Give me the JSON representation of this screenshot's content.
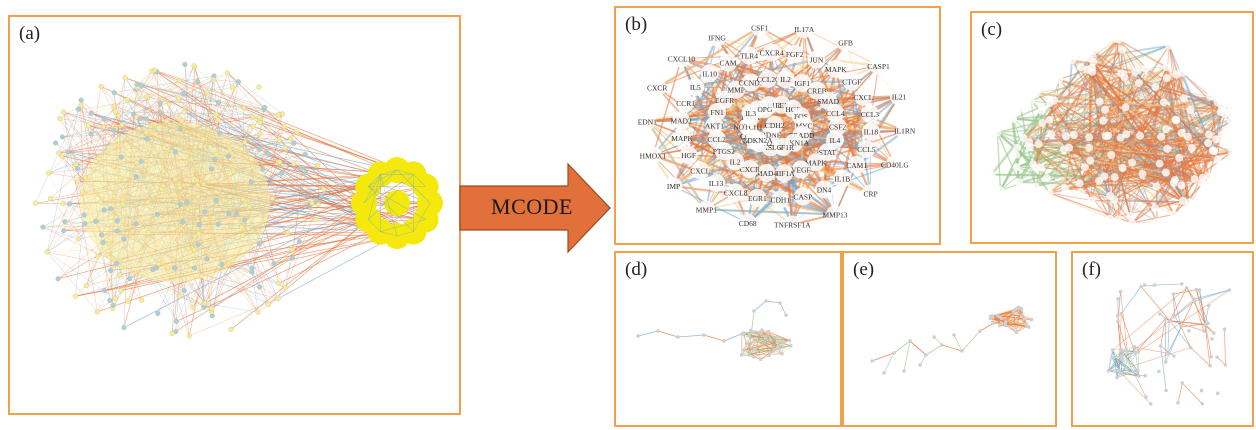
{
  "panels": {
    "a": {
      "label": "(a)"
    },
    "b": {
      "label": "(b)",
      "nodes": [
        "CASP1",
        "IL21",
        "IL1RN",
        "CD40LG",
        "CRP",
        "MMP13",
        "TNFRSF1A",
        "CD68",
        "MMP1",
        "IMP",
        "HMOX1",
        "EDN1",
        "CXCR",
        "CXCL10",
        "IFNG",
        "CSF1",
        "IL17A",
        "GFB",
        "MAPK",
        "CTGF",
        "CXCL",
        "CCL3",
        "IL18",
        "CCL5",
        "CAM1",
        "IL1B",
        "DN4",
        "CASP",
        "CDH1",
        "EGR1",
        "CXCL8",
        "IL13",
        "CXCL",
        "HGF",
        "MAPK",
        "MAD2",
        "CCR1",
        "IL5",
        "IL10",
        "CAM",
        "TLR4",
        "CXCR4",
        "FGF2",
        "JUN",
        "IGF1",
        "CREB",
        "SMAD",
        "CCL4",
        "CSF2",
        "IL4",
        "STAT",
        "MAPK",
        "VEGF",
        "HIF1A",
        "MAD4",
        "CXCR",
        "IL2",
        "PTGS2",
        "CCL2",
        "AKT1",
        "FN1",
        "EGFR",
        "MMP",
        "CCND1",
        "CCL20",
        "IL2",
        "LEP",
        "HGF",
        "FOS",
        "MYC",
        "TRADD",
        "CDKN1A",
        "CSF1R",
        "FASLG",
        "CXCL12",
        "CCAM",
        "NOTCH1",
        "PTEN",
        "ESR1",
        "FGF1R",
        "IL3",
        "OPG",
        "BDNF",
        "MTOR",
        "CDKN2A",
        "CDH2"
      ]
    },
    "c": {
      "label": "(c)"
    },
    "d": {
      "label": "(d)"
    },
    "e": {
      "label": "(e)"
    },
    "f": {
      "label": "(f)"
    }
  },
  "arrow": {
    "label": "MCODE"
  },
  "colors": {
    "panel_border": "#f0a24a",
    "edge_orange": "#e8743b",
    "edge_blue": "#6fa8d6",
    "edge_green": "#9cc68f",
    "edge_beige": "#f3d08c",
    "node_yellow": "#f6ec9b",
    "node_blue": "#a9cde3",
    "cluster_yellow": "#f5e90c",
    "arrow_fill": "#e2703a"
  }
}
